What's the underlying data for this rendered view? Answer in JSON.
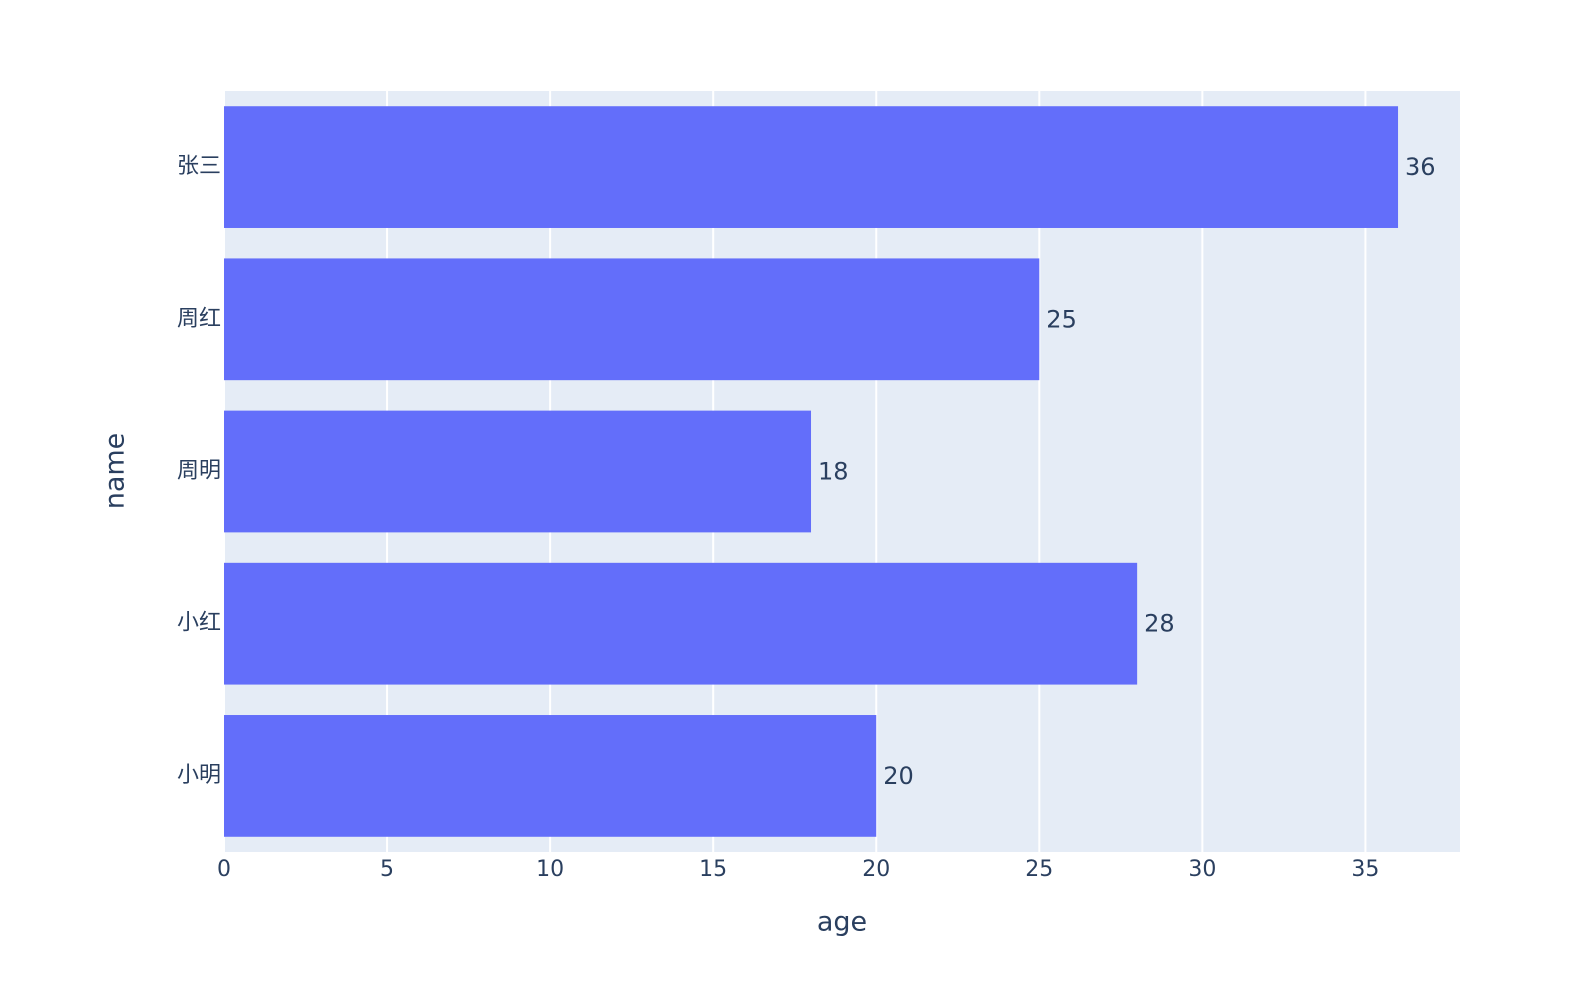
{
  "chart_data": {
    "type": "bar",
    "orientation": "h",
    "x_label": "age",
    "y_label": "name",
    "categories": [
      "小明",
      "小红",
      "周明",
      "周红",
      "张三"
    ],
    "values": [
      20,
      28,
      18,
      25,
      36
    ],
    "color": "#636efa",
    "xlim": [
      0,
      37.9
    ],
    "xticks": [
      0,
      5,
      10,
      15,
      20,
      25,
      30,
      35
    ],
    "grid": true
  }
}
